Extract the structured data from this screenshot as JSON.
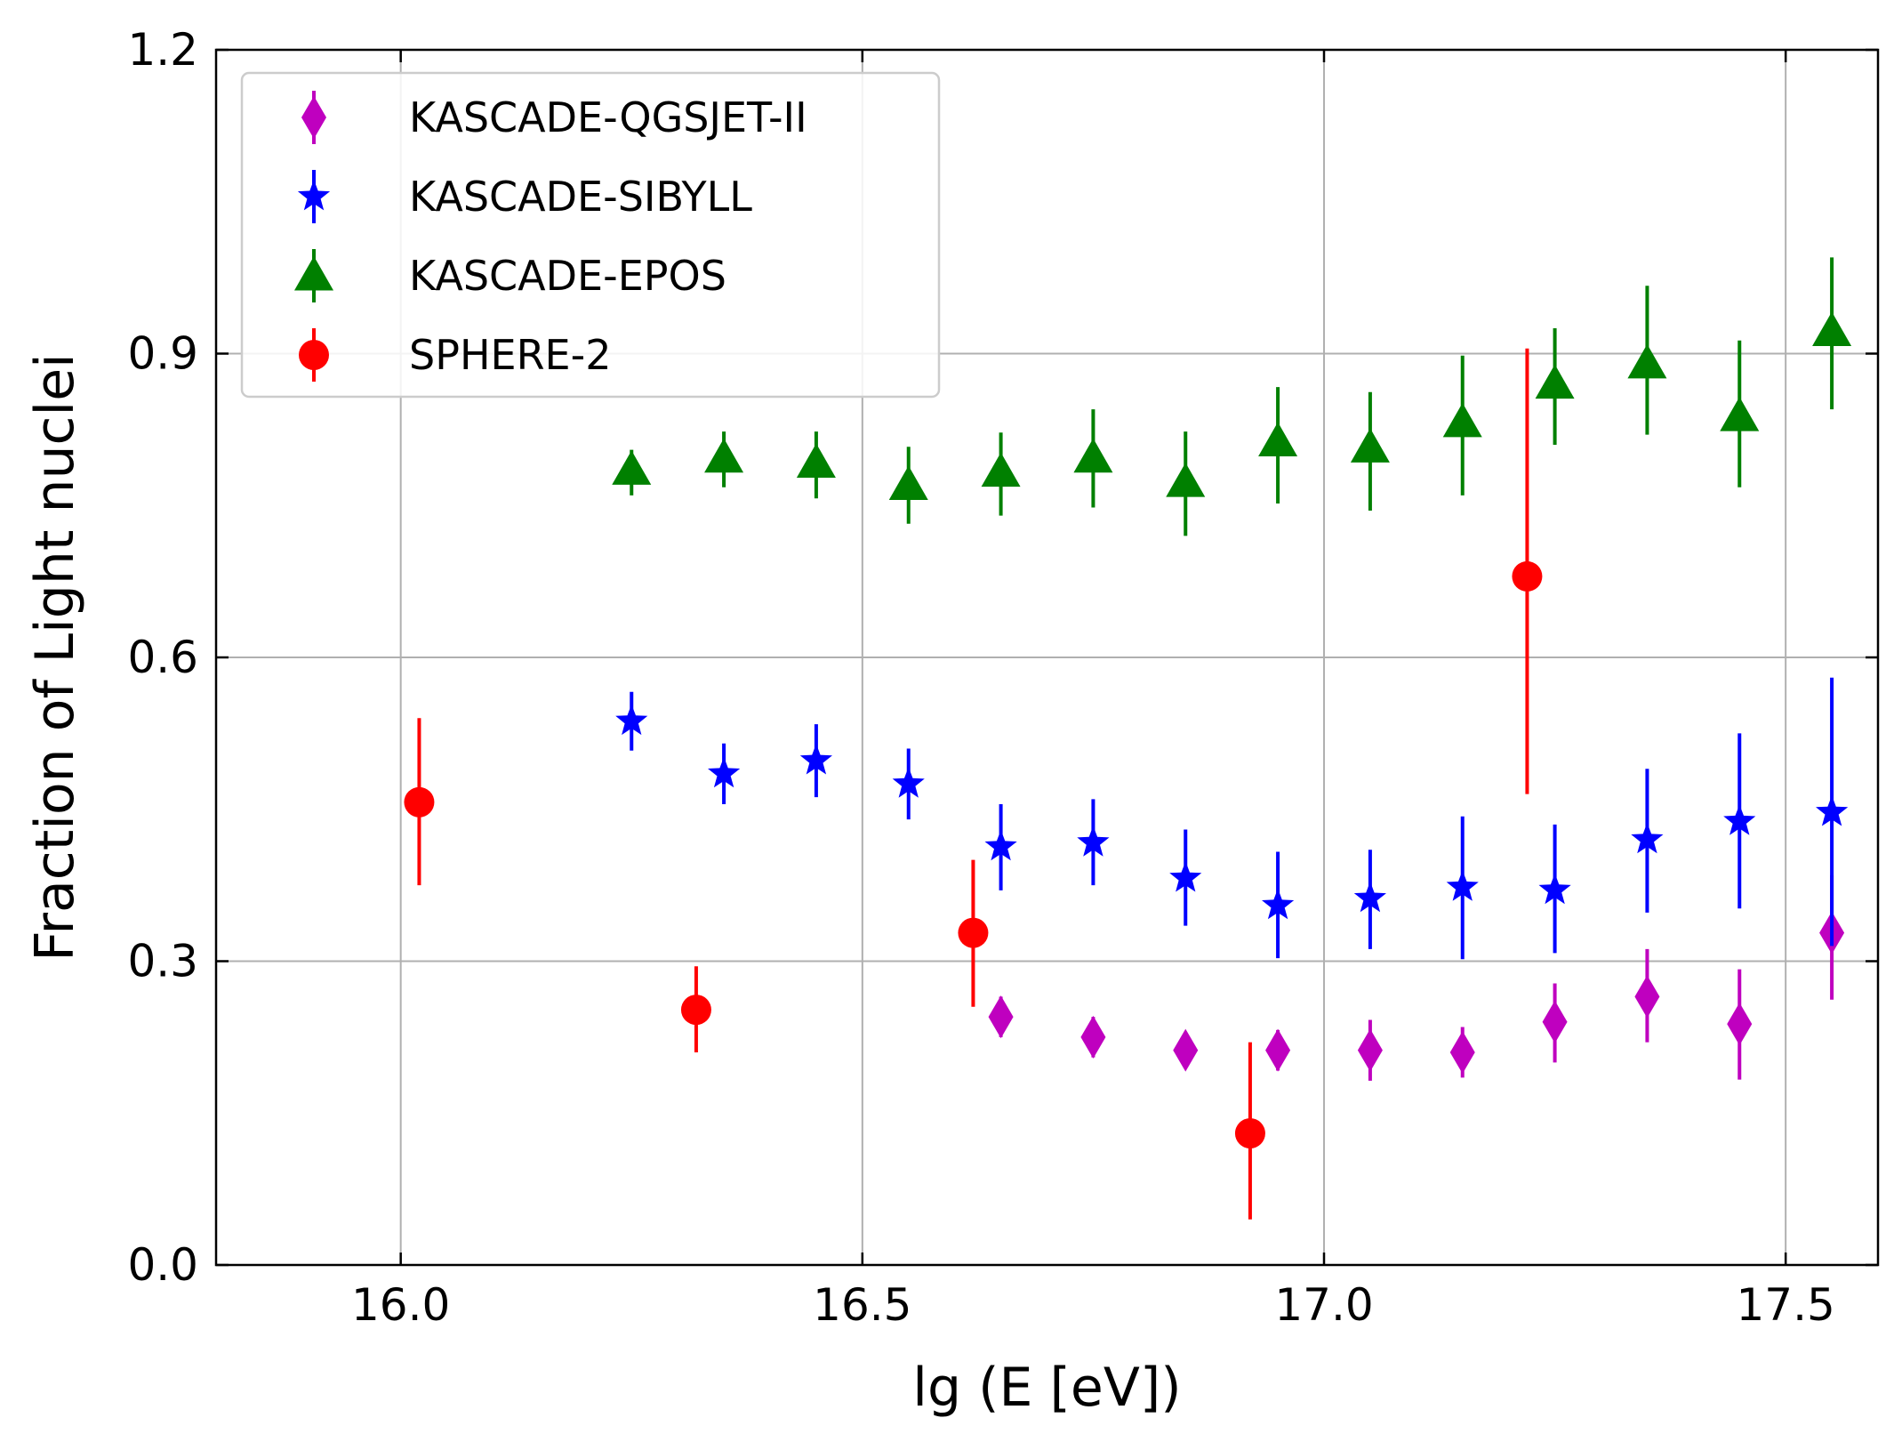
{
  "chart_data": {
    "type": "scatter",
    "title": "",
    "xlabel": "lg (E [eV])",
    "ylabel": "Fraction of Light nuclei",
    "xlim": [
      15.8,
      17.6
    ],
    "ylim": [
      0.0,
      1.2
    ],
    "xticks": [
      "16.0",
      "16.5",
      "17.0",
      "17.5"
    ],
    "yticks": [
      "0.0",
      "0.3",
      "0.6",
      "0.9",
      "1.2"
    ],
    "grid": true,
    "legend_position": "top-left",
    "series": [
      {
        "name": "KASCADE-QGSJET-II",
        "marker": "diamond",
        "color": "#bf00bf",
        "points": [
          {
            "x": 16.65,
            "y": 0.245,
            "lo": 0.225,
            "hi": 0.265
          },
          {
            "x": 16.75,
            "y": 0.225,
            "lo": 0.205,
            "hi": 0.245
          },
          {
            "x": 16.85,
            "y": 0.212,
            "lo": 0.195,
            "hi": 0.23
          },
          {
            "x": 16.95,
            "y": 0.212,
            "lo": 0.192,
            "hi": 0.232
          },
          {
            "x": 17.05,
            "y": 0.212,
            "lo": 0.182,
            "hi": 0.242
          },
          {
            "x": 17.15,
            "y": 0.21,
            "lo": 0.185,
            "hi": 0.235
          },
          {
            "x": 17.25,
            "y": 0.24,
            "lo": 0.2,
            "hi": 0.278
          },
          {
            "x": 17.35,
            "y": 0.265,
            "lo": 0.22,
            "hi": 0.312
          },
          {
            "x": 17.45,
            "y": 0.238,
            "lo": 0.183,
            "hi": 0.292
          },
          {
            "x": 17.55,
            "y": 0.328,
            "lo": 0.262,
            "hi": 0.385
          }
        ]
      },
      {
        "name": "KASCADE-SIBYLL",
        "marker": "star",
        "color": "#0000ff",
        "points": [
          {
            "x": 16.25,
            "y": 0.537,
            "lo": 0.508,
            "hi": 0.566
          },
          {
            "x": 16.35,
            "y": 0.485,
            "lo": 0.455,
            "hi": 0.515
          },
          {
            "x": 16.45,
            "y": 0.498,
            "lo": 0.462,
            "hi": 0.534
          },
          {
            "x": 16.55,
            "y": 0.475,
            "lo": 0.44,
            "hi": 0.51
          },
          {
            "x": 16.65,
            "y": 0.413,
            "lo": 0.37,
            "hi": 0.455
          },
          {
            "x": 16.75,
            "y": 0.417,
            "lo": 0.375,
            "hi": 0.46
          },
          {
            "x": 16.85,
            "y": 0.382,
            "lo": 0.335,
            "hi": 0.43
          },
          {
            "x": 16.95,
            "y": 0.355,
            "lo": 0.303,
            "hi": 0.408
          },
          {
            "x": 17.05,
            "y": 0.362,
            "lo": 0.312,
            "hi": 0.41
          },
          {
            "x": 17.15,
            "y": 0.373,
            "lo": 0.302,
            "hi": 0.443
          },
          {
            "x": 17.25,
            "y": 0.37,
            "lo": 0.308,
            "hi": 0.435
          },
          {
            "x": 17.35,
            "y": 0.42,
            "lo": 0.348,
            "hi": 0.49
          },
          {
            "x": 17.45,
            "y": 0.438,
            "lo": 0.352,
            "hi": 0.525
          },
          {
            "x": 17.55,
            "y": 0.447,
            "lo": 0.315,
            "hi": 0.58
          }
        ]
      },
      {
        "name": "KASCADE-EPOS",
        "marker": "triangle",
        "color": "#008000",
        "points": [
          {
            "x": 16.25,
            "y": 0.785,
            "lo": 0.76,
            "hi": 0.805
          },
          {
            "x": 16.35,
            "y": 0.797,
            "lo": 0.768,
            "hi": 0.823
          },
          {
            "x": 16.45,
            "y": 0.792,
            "lo": 0.757,
            "hi": 0.823
          },
          {
            "x": 16.55,
            "y": 0.77,
            "lo": 0.732,
            "hi": 0.808
          },
          {
            "x": 16.65,
            "y": 0.783,
            "lo": 0.74,
            "hi": 0.822
          },
          {
            "x": 16.75,
            "y": 0.797,
            "lo": 0.748,
            "hi": 0.845
          },
          {
            "x": 16.85,
            "y": 0.773,
            "lo": 0.72,
            "hi": 0.823
          },
          {
            "x": 16.95,
            "y": 0.813,
            "lo": 0.752,
            "hi": 0.867
          },
          {
            "x": 17.05,
            "y": 0.807,
            "lo": 0.745,
            "hi": 0.862
          },
          {
            "x": 17.15,
            "y": 0.832,
            "lo": 0.76,
            "hi": 0.898
          },
          {
            "x": 17.25,
            "y": 0.87,
            "lo": 0.81,
            "hi": 0.925
          },
          {
            "x": 17.35,
            "y": 0.89,
            "lo": 0.82,
            "hi": 0.967
          },
          {
            "x": 17.45,
            "y": 0.838,
            "lo": 0.768,
            "hi": 0.913
          },
          {
            "x": 17.55,
            "y": 0.922,
            "lo": 0.845,
            "hi": 0.995
          }
        ]
      },
      {
        "name": "SPHERE-2",
        "marker": "circle",
        "color": "#ff0000",
        "points": [
          {
            "x": 16.02,
            "y": 0.457,
            "lo": 0.375,
            "hi": 0.54
          },
          {
            "x": 16.32,
            "y": 0.252,
            "lo": 0.21,
            "hi": 0.295
          },
          {
            "x": 16.62,
            "y": 0.328,
            "lo": 0.255,
            "hi": 0.4
          },
          {
            "x": 16.92,
            "y": 0.13,
            "lo": 0.045,
            "hi": 0.22
          },
          {
            "x": 17.22,
            "y": 0.68,
            "lo": 0.465,
            "hi": 0.905
          }
        ]
      }
    ]
  }
}
